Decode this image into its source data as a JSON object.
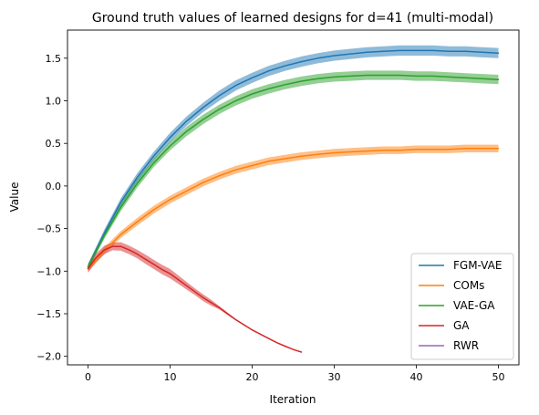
{
  "chart_data": {
    "type": "line",
    "title": "Ground truth values of learned designs for d=41 (multi-modal)",
    "xlabel": "Iteration",
    "ylabel": "Value",
    "xlim": [
      -2.5,
      52.5
    ],
    "ylim": [
      -2.1,
      1.83
    ],
    "xticks": [
      0,
      10,
      20,
      30,
      40,
      50
    ],
    "yticks": [
      -2.0,
      -1.5,
      -1.0,
      -0.5,
      0.0,
      0.5,
      1.0,
      1.5
    ],
    "ytick_labels": [
      "−2.0",
      "−1.5",
      "−1.0",
      "−0.5",
      "0.0",
      "0.5",
      "1.0",
      "1.5"
    ],
    "grid": false,
    "legend_position": "lower right",
    "series": [
      {
        "name": "FGM-VAE",
        "color": "#1f77b4",
        "x": [
          0,
          2,
          4,
          6,
          8,
          10,
          12,
          14,
          16,
          18,
          20,
          22,
          24,
          26,
          28,
          30,
          32,
          34,
          36,
          38,
          40,
          42,
          44,
          46,
          48,
          50
        ],
        "y": [
          -0.95,
          -0.55,
          -0.19,
          0.1,
          0.35,
          0.57,
          0.76,
          0.92,
          1.06,
          1.18,
          1.27,
          1.35,
          1.41,
          1.46,
          1.5,
          1.53,
          1.55,
          1.57,
          1.58,
          1.59,
          1.59,
          1.59,
          1.58,
          1.58,
          1.57,
          1.56
        ],
        "band": [
          0.035,
          0.04,
          0.045,
          0.05,
          0.05,
          0.055,
          0.055,
          0.055,
          0.06,
          0.06,
          0.06,
          0.06,
          0.06,
          0.06,
          0.06,
          0.06,
          0.06,
          0.06,
          0.06,
          0.06,
          0.06,
          0.06,
          0.06,
          0.06,
          0.06,
          0.06
        ]
      },
      {
        "name": "COMs",
        "color": "#ff7f0e",
        "x": [
          0,
          2,
          4,
          6,
          8,
          10,
          12,
          14,
          16,
          18,
          20,
          22,
          24,
          26,
          28,
          30,
          32,
          34,
          36,
          38,
          40,
          42,
          44,
          46,
          48,
          50
        ],
        "y": [
          -0.97,
          -0.76,
          -0.57,
          -0.42,
          -0.28,
          -0.16,
          -0.06,
          0.04,
          0.12,
          0.19,
          0.24,
          0.29,
          0.32,
          0.35,
          0.37,
          0.39,
          0.4,
          0.41,
          0.42,
          0.42,
          0.43,
          0.43,
          0.43,
          0.44,
          0.44,
          0.44
        ],
        "band": [
          0.035,
          0.04,
          0.04,
          0.045,
          0.045,
          0.045,
          0.045,
          0.045,
          0.045,
          0.045,
          0.045,
          0.045,
          0.045,
          0.045,
          0.045,
          0.045,
          0.045,
          0.045,
          0.045,
          0.045,
          0.045,
          0.045,
          0.045,
          0.045,
          0.045,
          0.045
        ]
      },
      {
        "name": "VAE-GA",
        "color": "#2ca02c",
        "x": [
          0,
          2,
          4,
          6,
          8,
          10,
          12,
          14,
          16,
          18,
          20,
          22,
          24,
          26,
          28,
          30,
          32,
          34,
          36,
          38,
          40,
          42,
          44,
          46,
          48,
          50
        ],
        "y": [
          -0.95,
          -0.58,
          -0.25,
          0.03,
          0.27,
          0.47,
          0.64,
          0.78,
          0.9,
          1.0,
          1.08,
          1.14,
          1.19,
          1.23,
          1.26,
          1.28,
          1.29,
          1.3,
          1.3,
          1.3,
          1.29,
          1.29,
          1.28,
          1.27,
          1.26,
          1.25
        ],
        "band": [
          0.035,
          0.04,
          0.045,
          0.05,
          0.05,
          0.05,
          0.055,
          0.055,
          0.055,
          0.055,
          0.055,
          0.055,
          0.055,
          0.055,
          0.055,
          0.055,
          0.055,
          0.055,
          0.055,
          0.055,
          0.055,
          0.055,
          0.055,
          0.055,
          0.055,
          0.055
        ]
      },
      {
        "name": "GA",
        "color": "#d62728",
        "x": [
          0,
          1,
          2,
          3,
          4,
          5,
          6,
          7,
          8,
          9,
          10,
          11,
          12,
          13,
          14,
          15,
          16,
          17,
          18,
          19,
          20,
          21,
          22,
          23,
          24,
          25,
          26
        ],
        "y": [
          -0.97,
          -0.84,
          -0.75,
          -0.71,
          -0.71,
          -0.75,
          -0.8,
          -0.86,
          -0.92,
          -0.98,
          -1.03,
          -1.1,
          -1.17,
          -1.24,
          -1.31,
          -1.37,
          -1.43,
          -1.5,
          -1.57,
          -1.63,
          -1.69,
          -1.74,
          -1.79,
          -1.84,
          -1.88,
          -1.92,
          -1.95
        ],
        "band": [
          0.05,
          0.05,
          0.05,
          0.045,
          0.05,
          0.05,
          0.05,
          0.055,
          0.055,
          0.055,
          0.055,
          0.05,
          0.045,
          0.04,
          0.04,
          0.035,
          0.02,
          0.015,
          0.01,
          0.008,
          0.006,
          0.005,
          0.005,
          0.004,
          0.004,
          0.004,
          0.004
        ]
      },
      {
        "name": "RWR",
        "color": "#9467bd",
        "x": [],
        "y": [],
        "band": []
      }
    ]
  }
}
